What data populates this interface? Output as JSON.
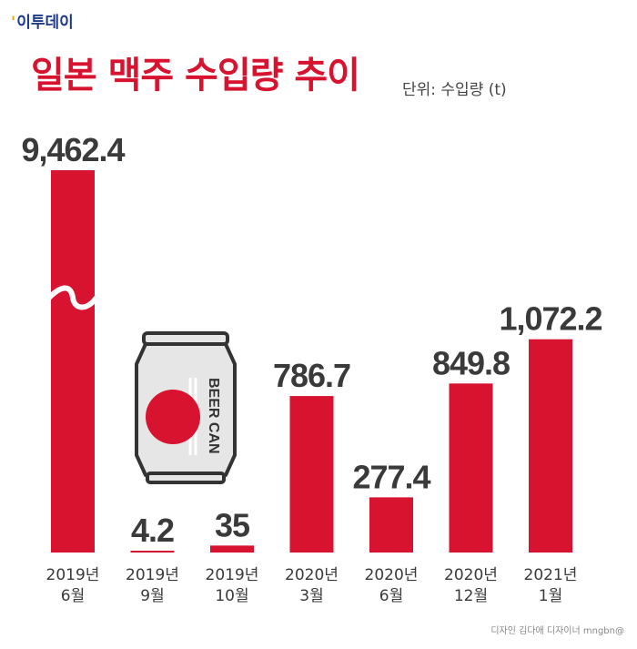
{
  "brand": {
    "logo_text": "이투데이"
  },
  "header": {
    "title": "일본 맥주 수입량 추이",
    "unit": "단위: 수입량 (t)"
  },
  "illustration": {
    "can_text": "BEER CAN",
    "icon": "beer-can-icon"
  },
  "credit": "디자인 김다애 디자이너 mngbn@",
  "colors": {
    "bar": "#d7132f",
    "text": "#3a3a3a"
  },
  "chart_data": {
    "type": "bar",
    "title": "일본 맥주 수입량 추이",
    "ylabel": "단위: 수입량 (t)",
    "xlabel": "",
    "axis_break": true,
    "categories": [
      [
        "2019년",
        "6월"
      ],
      [
        "2019년",
        "9월"
      ],
      [
        "2019년",
        "10월"
      ],
      [
        "2020년",
        "3월"
      ],
      [
        "2020년",
        "6월"
      ],
      [
        "2020년",
        "12월"
      ],
      [
        "2021년",
        "1월"
      ]
    ],
    "values": [
      9462.4,
      4.2,
      35,
      786.7,
      277.4,
      849.8,
      1072.2
    ],
    "value_labels": [
      "9,462.4",
      "4.2",
      "35",
      "786.7",
      "277.4",
      "849.8",
      "1,072.2"
    ]
  }
}
